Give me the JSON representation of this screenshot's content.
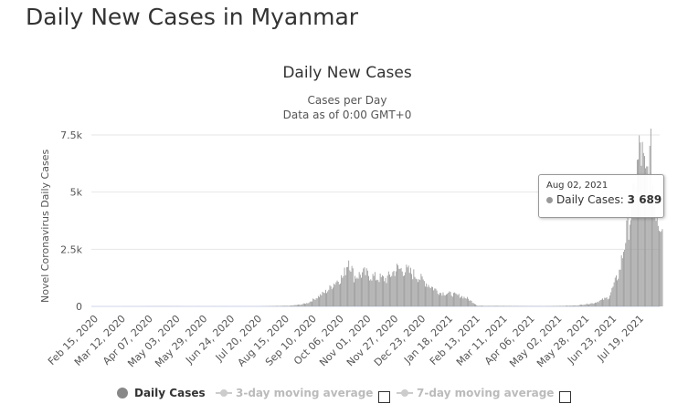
{
  "page": {
    "title": "Daily New Cases in Myanmar"
  },
  "chart_data": {
    "type": "bar",
    "title": "Daily New Cases",
    "subtitle_1": "Cases per Day",
    "subtitle_2": "Data as of 0:00 GMT+0",
    "ylabel": "Novel Coronavirus Daily Cases",
    "xlabel": "",
    "ylim": [
      0,
      7500
    ],
    "yticks": [
      {
        "value": 0,
        "label": "0"
      },
      {
        "value": 2500,
        "label": "2.5k"
      },
      {
        "value": 5000,
        "label": "5k"
      },
      {
        "value": 7500,
        "label": "7.5k"
      }
    ],
    "xticks": [
      {
        "date": "2020-02-15",
        "label": "Feb 15, 2020"
      },
      {
        "date": "2020-03-12",
        "label": "Mar 12, 2020"
      },
      {
        "date": "2020-04-07",
        "label": "Apr 07, 2020"
      },
      {
        "date": "2020-05-03",
        "label": "May 03, 2020"
      },
      {
        "date": "2020-05-29",
        "label": "May 29, 2020"
      },
      {
        "date": "2020-06-24",
        "label": "Jun 24, 2020"
      },
      {
        "date": "2020-07-20",
        "label": "Jul 20, 2020"
      },
      {
        "date": "2020-08-15",
        "label": "Aug 15, 2020"
      },
      {
        "date": "2020-09-10",
        "label": "Sep 10, 2020"
      },
      {
        "date": "2020-10-06",
        "label": "Oct 06, 2020"
      },
      {
        "date": "2020-11-01",
        "label": "Nov 01, 2020"
      },
      {
        "date": "2020-11-27",
        "label": "Nov 27, 2020"
      },
      {
        "date": "2020-12-23",
        "label": "Dec 23, 2020"
      },
      {
        "date": "2021-01-18",
        "label": "Jan 18, 2021"
      },
      {
        "date": "2021-02-13",
        "label": "Feb 13, 2021"
      },
      {
        "date": "2021-03-11",
        "label": "Mar 11, 2021"
      },
      {
        "date": "2021-04-06",
        "label": "Apr 06, 2021"
      },
      {
        "date": "2021-05-02",
        "label": "May 02, 2021"
      },
      {
        "date": "2021-05-28",
        "label": "May 28, 2021"
      },
      {
        "date": "2021-06-23",
        "label": "Jun 23, 2021"
      },
      {
        "date": "2021-07-19",
        "label": "Jul 19, 2021"
      }
    ],
    "grid": true,
    "bar_color": "#999999",
    "series": [
      {
        "name": "Daily Cases",
        "points": [
          {
            "date": "2020-02-15",
            "value": 0
          },
          {
            "date": "2020-03-23",
            "value": 2
          },
          {
            "date": "2020-04-15",
            "value": 8
          },
          {
            "date": "2020-05-15",
            "value": 3
          },
          {
            "date": "2020-06-15",
            "value": 5
          },
          {
            "date": "2020-07-15",
            "value": 5
          },
          {
            "date": "2020-08-15",
            "value": 30
          },
          {
            "date": "2020-08-25",
            "value": 80
          },
          {
            "date": "2020-09-01",
            "value": 150
          },
          {
            "date": "2020-09-10",
            "value": 400
          },
          {
            "date": "2020-09-20",
            "value": 700
          },
          {
            "date": "2020-09-28",
            "value": 1100
          },
          {
            "date": "2020-10-05",
            "value": 1300
          },
          {
            "date": "2020-10-10",
            "value": 2100
          },
          {
            "date": "2020-10-15",
            "value": 1300
          },
          {
            "date": "2020-10-25",
            "value": 1450
          },
          {
            "date": "2020-11-05",
            "value": 1250
          },
          {
            "date": "2020-11-15",
            "value": 1200
          },
          {
            "date": "2020-11-25",
            "value": 1650
          },
          {
            "date": "2020-12-05",
            "value": 1550
          },
          {
            "date": "2020-12-15",
            "value": 1300
          },
          {
            "date": "2020-12-25",
            "value": 950
          },
          {
            "date": "2021-01-05",
            "value": 600
          },
          {
            "date": "2021-01-15",
            "value": 550
          },
          {
            "date": "2021-01-25",
            "value": 450
          },
          {
            "date": "2021-01-31",
            "value": 350
          },
          {
            "date": "2021-02-10",
            "value": 30
          },
          {
            "date": "2021-03-15",
            "value": 20
          },
          {
            "date": "2021-04-15",
            "value": 10
          },
          {
            "date": "2021-05-15",
            "value": 40
          },
          {
            "date": "2021-06-01",
            "value": 150
          },
          {
            "date": "2021-06-15",
            "value": 400
          },
          {
            "date": "2021-06-25",
            "value": 1500
          },
          {
            "date": "2021-07-01",
            "value": 3000
          },
          {
            "date": "2021-07-08",
            "value": 4500
          },
          {
            "date": "2021-07-15",
            "value": 7000
          },
          {
            "date": "2021-07-20",
            "value": 5500
          },
          {
            "date": "2021-07-25",
            "value": 6500
          },
          {
            "date": "2021-07-28",
            "value": 4800
          },
          {
            "date": "2021-08-02",
            "value": 3689
          },
          {
            "date": "2021-08-05",
            "value": 3900
          }
        ]
      }
    ],
    "tooltip": {
      "date": "Aug 02, 2021",
      "series": "Daily Cases:",
      "value": "3 689"
    }
  },
  "legend": {
    "items": [
      {
        "label": "Daily Cases",
        "enabled": true
      },
      {
        "label": "3-day moving average",
        "enabled": false
      },
      {
        "label": "7-day moving average",
        "enabled": false
      }
    ]
  }
}
